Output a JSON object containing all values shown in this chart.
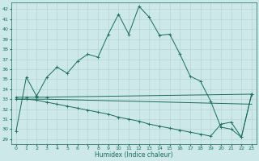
{
  "xlabel": "Humidex (Indice chaleur)",
  "bg_color": "#cce8e8",
  "grid_color": "#b0d0d0",
  "line_color": "#1a6b5a",
  "xlim": [
    -0.5,
    23.5
  ],
  "ylim": [
    28.5,
    42.7
  ],
  "yticks": [
    29,
    30,
    31,
    32,
    33,
    34,
    35,
    36,
    37,
    38,
    39,
    40,
    41,
    42
  ],
  "xticks": [
    0,
    1,
    2,
    3,
    4,
    5,
    6,
    7,
    8,
    9,
    10,
    11,
    12,
    13,
    14,
    15,
    16,
    17,
    18,
    19,
    20,
    21,
    22,
    23
  ],
  "series": [
    {
      "x": [
        0,
        1,
        2,
        3,
        4,
        5,
        6,
        7,
        8,
        9,
        10,
        11,
        12,
        13,
        14,
        15,
        16,
        17,
        18,
        19,
        20,
        21,
        22,
        23
      ],
      "y": [
        29.8,
        35.2,
        33.3,
        35.2,
        36.2,
        35.6,
        36.8,
        37.5,
        37.2,
        39.5,
        41.5,
        39.5,
        42.3,
        41.2,
        39.4,
        39.5,
        37.5,
        35.3,
        34.8,
        32.8,
        30.2,
        30.0,
        29.2,
        33.5
      ],
      "marker": true
    },
    {
      "x": [
        0,
        1,
        2,
        3,
        23
      ],
      "y": [
        33.2,
        33.2,
        33.2,
        33.2,
        33.5
      ],
      "marker": true
    },
    {
      "x": [
        0,
        1,
        2,
        3,
        23
      ],
      "y": [
        33.0,
        33.0,
        33.0,
        33.0,
        32.5
      ],
      "marker": false
    },
    {
      "x": [
        0,
        1,
        2,
        3,
        4,
        5,
        6,
        7,
        8,
        9,
        10,
        11,
        12,
        13,
        14,
        15,
        16,
        17,
        18,
        19,
        20,
        21,
        22,
        23
      ],
      "y": [
        33.0,
        33.0,
        32.9,
        32.7,
        32.5,
        32.3,
        32.1,
        31.9,
        31.7,
        31.5,
        31.2,
        31.0,
        30.8,
        30.5,
        30.3,
        30.1,
        29.9,
        29.7,
        29.5,
        29.3,
        30.5,
        30.7,
        29.2,
        33.5
      ],
      "marker": true
    }
  ]
}
